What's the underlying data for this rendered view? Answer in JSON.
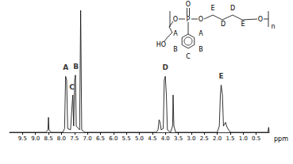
{
  "chart_data": {
    "type": "line",
    "x_label": "ppm",
    "xlim": [
      10,
      0
    ],
    "ylim": [
      0,
      1
    ],
    "xticks": [
      9.5,
      {
        "value": 9,
        "label": "9.0"
      },
      8.5,
      {
        "value": 8,
        "label": "8.0"
      },
      7.5,
      {
        "value": 7,
        "label": "7.0"
      },
      6.5,
      {
        "value": 6,
        "label": "6.0"
      },
      5.5,
      {
        "value": 5,
        "label": "5.0"
      },
      4.5,
      {
        "value": 4,
        "label": "4.0"
      },
      3.5,
      {
        "value": 3,
        "label": "3.0"
      },
      2.5,
      {
        "value": 2,
        "label": "2.0"
      },
      1.5,
      {
        "value": 1,
        "label": "1.0"
      },
      0.5
    ],
    "tick_labels": "x",
    "grid": false,
    "color": "#000000",
    "x": [
      10.0,
      8.6,
      8.52,
      8.5,
      8.48,
      8.4,
      7.95,
      7.88,
      7.84,
      7.8,
      7.76,
      7.65,
      7.58,
      7.56,
      7.53,
      7.49,
      7.46,
      7.43,
      7.3,
      7.26,
      7.22,
      7.1,
      4.35,
      4.28,
      4.24,
      4.2,
      4.16,
      4.08,
      4.04,
      4.0,
      3.96,
      3.92,
      3.8,
      3.72,
      3.7,
      3.67,
      3.6,
      2.0,
      1.92,
      1.88,
      1.85,
      1.8,
      1.76,
      1.68,
      1.62,
      1.5,
      0.05,
      0.02,
      0.0
    ],
    "values": [
      0,
      0,
      0.02,
      0.12,
      0.02,
      0,
      0,
      0.03,
      0.45,
      0.42,
      0.03,
      0.02,
      0.25,
      0.3,
      0.05,
      0.42,
      0.46,
      0.05,
      0.02,
      0.98,
      0.02,
      0,
      0,
      0.02,
      0.1,
      0.08,
      0.02,
      0.03,
      0.42,
      0.45,
      0.3,
      0.02,
      0,
      0.05,
      0.3,
      0.05,
      0,
      0,
      0.05,
      0.3,
      0.38,
      0.3,
      0.05,
      0.08,
      0.04,
      0,
      0,
      0.04,
      0
    ],
    "annotations": [
      {
        "text": "A",
        "x": 7.84,
        "y": 0.52
      },
      {
        "text": "C",
        "x": 7.6,
        "y": 0.36
      },
      {
        "text": "B",
        "x": 7.44,
        "y": 0.53
      },
      {
        "text": "D",
        "x": 4.0,
        "y": 0.52
      },
      {
        "text": "E",
        "x": 1.85,
        "y": 0.45
      }
    ],
    "structure": {
      "labels": [
        "P",
        "O",
        "O",
        "O",
        "HO",
        "O",
        "n",
        "A",
        "A",
        "B",
        "B",
        "C",
        "E",
        "D",
        "D",
        "E"
      ]
    }
  }
}
